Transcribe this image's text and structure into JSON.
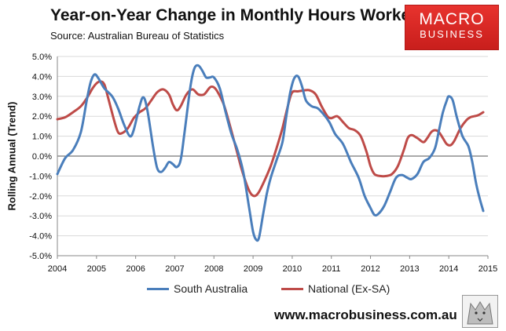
{
  "header": {
    "title": "Year-on-Year Change in Monthly Hours Worked",
    "source": "Source: Australian Bureau of Statistics"
  },
  "logo": {
    "line1": "MACRO",
    "line2": "BUSINESS"
  },
  "footer": {
    "website": "www.macrobusiness.com.au"
  },
  "colors": {
    "south_australia": "#4a7ebb",
    "national": "#be4b48",
    "logo_red": "#e32b28"
  },
  "chart_data": {
    "type": "line",
    "title": "Year-on-Year Change in Monthly Hours Worked",
    "subtitle": "Source: Australian Bureau of Statistics",
    "xlabel": "",
    "ylabel": "Rolling Annual (Trend)",
    "xlim": [
      2004,
      2015
    ],
    "ylim": [
      -5,
      5
    ],
    "xticks": [
      "2004",
      "2005",
      "2006",
      "2007",
      "2008",
      "2009",
      "2010",
      "2011",
      "2012",
      "2013",
      "2014",
      "2015"
    ],
    "yticks": [
      "5.0%",
      "4.0%",
      "3.0%",
      "2.0%",
      "1.0%",
      "0.0%",
      "-1.0%",
      "-2.0%",
      "-3.0%",
      "-4.0%",
      "-5.0%"
    ],
    "grid": true,
    "legend": "bottom",
    "series": [
      {
        "name": "South Australia",
        "color": "#4a7ebb",
        "points": [
          [
            2004.0,
            -0.9
          ],
          [
            2004.2,
            -0.1
          ],
          [
            2004.4,
            0.3
          ],
          [
            2004.6,
            1.2
          ],
          [
            2004.75,
            2.8
          ],
          [
            2004.85,
            3.7
          ],
          [
            2004.95,
            4.1
          ],
          [
            2005.05,
            3.9
          ],
          [
            2005.2,
            3.4
          ],
          [
            2005.4,
            3.0
          ],
          [
            2005.55,
            2.4
          ],
          [
            2005.7,
            1.6
          ],
          [
            2005.85,
            1.0
          ],
          [
            2005.95,
            1.3
          ],
          [
            2006.1,
            2.5
          ],
          [
            2006.2,
            2.95
          ],
          [
            2006.3,
            2.3
          ],
          [
            2006.45,
            0.4
          ],
          [
            2006.55,
            -0.6
          ],
          [
            2006.65,
            -0.8
          ],
          [
            2006.75,
            -0.6
          ],
          [
            2006.85,
            -0.3
          ],
          [
            2006.95,
            -0.4
          ],
          [
            2007.05,
            -0.55
          ],
          [
            2007.15,
            -0.2
          ],
          [
            2007.25,
            1.2
          ],
          [
            2007.4,
            3.5
          ],
          [
            2007.5,
            4.4
          ],
          [
            2007.6,
            4.55
          ],
          [
            2007.7,
            4.3
          ],
          [
            2007.8,
            3.95
          ],
          [
            2007.9,
            3.95
          ],
          [
            2008.0,
            3.95
          ],
          [
            2008.15,
            3.4
          ],
          [
            2008.3,
            2.2
          ],
          [
            2008.45,
            1.1
          ],
          [
            2008.6,
            0.3
          ],
          [
            2008.75,
            -0.8
          ],
          [
            2008.9,
            -2.6
          ],
          [
            2009.0,
            -3.8
          ],
          [
            2009.08,
            -4.2
          ],
          [
            2009.15,
            -4.1
          ],
          [
            2009.25,
            -3.0
          ],
          [
            2009.35,
            -1.9
          ],
          [
            2009.45,
            -1.1
          ],
          [
            2009.6,
            -0.2
          ],
          [
            2009.75,
            0.7
          ],
          [
            2009.85,
            2.0
          ],
          [
            2009.95,
            3.2
          ],
          [
            2010.05,
            3.9
          ],
          [
            2010.15,
            4.0
          ],
          [
            2010.25,
            3.5
          ],
          [
            2010.35,
            2.8
          ],
          [
            2010.5,
            2.5
          ],
          [
            2010.65,
            2.4
          ],
          [
            2010.8,
            2.1
          ],
          [
            2010.95,
            1.7
          ],
          [
            2011.1,
            1.1
          ],
          [
            2011.3,
            0.6
          ],
          [
            2011.5,
            -0.3
          ],
          [
            2011.7,
            -1.1
          ],
          [
            2011.85,
            -2.0
          ],
          [
            2012.0,
            -2.6
          ],
          [
            2012.1,
            -2.95
          ],
          [
            2012.2,
            -2.9
          ],
          [
            2012.35,
            -2.5
          ],
          [
            2012.5,
            -1.8
          ],
          [
            2012.65,
            -1.1
          ],
          [
            2012.8,
            -0.95
          ],
          [
            2012.95,
            -1.1
          ],
          [
            2013.05,
            -1.15
          ],
          [
            2013.2,
            -0.9
          ],
          [
            2013.35,
            -0.3
          ],
          [
            2013.5,
            -0.1
          ],
          [
            2013.65,
            0.4
          ],
          [
            2013.75,
            1.3
          ],
          [
            2013.85,
            2.2
          ],
          [
            2013.95,
            2.8
          ],
          [
            2014.0,
            3.0
          ],
          [
            2014.1,
            2.8
          ],
          [
            2014.2,
            2.0
          ],
          [
            2014.35,
            1.0
          ],
          [
            2014.5,
            0.5
          ],
          [
            2014.6,
            -0.3
          ],
          [
            2014.7,
            -1.4
          ],
          [
            2014.8,
            -2.2
          ],
          [
            2014.88,
            -2.75
          ]
        ]
      },
      {
        "name": "National (Ex-SA)",
        "color": "#be4b48",
        "points": [
          [
            2004.0,
            1.85
          ],
          [
            2004.2,
            1.95
          ],
          [
            2004.4,
            2.2
          ],
          [
            2004.6,
            2.5
          ],
          [
            2004.75,
            2.9
          ],
          [
            2004.9,
            3.4
          ],
          [
            2005.0,
            3.65
          ],
          [
            2005.1,
            3.75
          ],
          [
            2005.2,
            3.6
          ],
          [
            2005.3,
            2.9
          ],
          [
            2005.45,
            1.8
          ],
          [
            2005.55,
            1.2
          ],
          [
            2005.65,
            1.15
          ],
          [
            2005.8,
            1.4
          ],
          [
            2005.95,
            1.9
          ],
          [
            2006.1,
            2.2
          ],
          [
            2006.25,
            2.4
          ],
          [
            2006.4,
            2.8
          ],
          [
            2006.55,
            3.2
          ],
          [
            2006.7,
            3.35
          ],
          [
            2006.85,
            3.1
          ],
          [
            2006.95,
            2.6
          ],
          [
            2007.05,
            2.3
          ],
          [
            2007.15,
            2.5
          ],
          [
            2007.3,
            3.1
          ],
          [
            2007.45,
            3.35
          ],
          [
            2007.6,
            3.1
          ],
          [
            2007.75,
            3.1
          ],
          [
            2007.9,
            3.45
          ],
          [
            2008.0,
            3.45
          ],
          [
            2008.1,
            3.2
          ],
          [
            2008.25,
            2.6
          ],
          [
            2008.4,
            1.6
          ],
          [
            2008.55,
            0.5
          ],
          [
            2008.7,
            -0.6
          ],
          [
            2008.85,
            -1.5
          ],
          [
            2008.95,
            -1.9
          ],
          [
            2009.05,
            -2.0
          ],
          [
            2009.15,
            -1.8
          ],
          [
            2009.3,
            -1.2
          ],
          [
            2009.45,
            -0.5
          ],
          [
            2009.6,
            0.4
          ],
          [
            2009.75,
            1.4
          ],
          [
            2009.9,
            2.6
          ],
          [
            2010.0,
            3.2
          ],
          [
            2010.15,
            3.25
          ],
          [
            2010.3,
            3.3
          ],
          [
            2010.45,
            3.3
          ],
          [
            2010.6,
            3.1
          ],
          [
            2010.75,
            2.5
          ],
          [
            2010.9,
            2.0
          ],
          [
            2011.0,
            1.9
          ],
          [
            2011.15,
            2.0
          ],
          [
            2011.3,
            1.7
          ],
          [
            2011.45,
            1.4
          ],
          [
            2011.6,
            1.3
          ],
          [
            2011.75,
            1.0
          ],
          [
            2011.9,
            0.2
          ],
          [
            2012.0,
            -0.5
          ],
          [
            2012.1,
            -0.9
          ],
          [
            2012.25,
            -1.0
          ],
          [
            2012.4,
            -1.0
          ],
          [
            2012.55,
            -0.9
          ],
          [
            2012.7,
            -0.5
          ],
          [
            2012.85,
            0.3
          ],
          [
            2012.95,
            0.9
          ],
          [
            2013.05,
            1.05
          ],
          [
            2013.2,
            0.9
          ],
          [
            2013.35,
            0.7
          ],
          [
            2013.45,
            0.9
          ],
          [
            2013.55,
            1.2
          ],
          [
            2013.65,
            1.3
          ],
          [
            2013.75,
            1.2
          ],
          [
            2013.85,
            0.9
          ],
          [
            2013.95,
            0.6
          ],
          [
            2014.05,
            0.55
          ],
          [
            2014.15,
            0.8
          ],
          [
            2014.3,
            1.4
          ],
          [
            2014.45,
            1.8
          ],
          [
            2014.55,
            1.95
          ],
          [
            2014.65,
            2.0
          ],
          [
            2014.75,
            2.05
          ],
          [
            2014.88,
            2.2
          ]
        ]
      }
    ]
  }
}
